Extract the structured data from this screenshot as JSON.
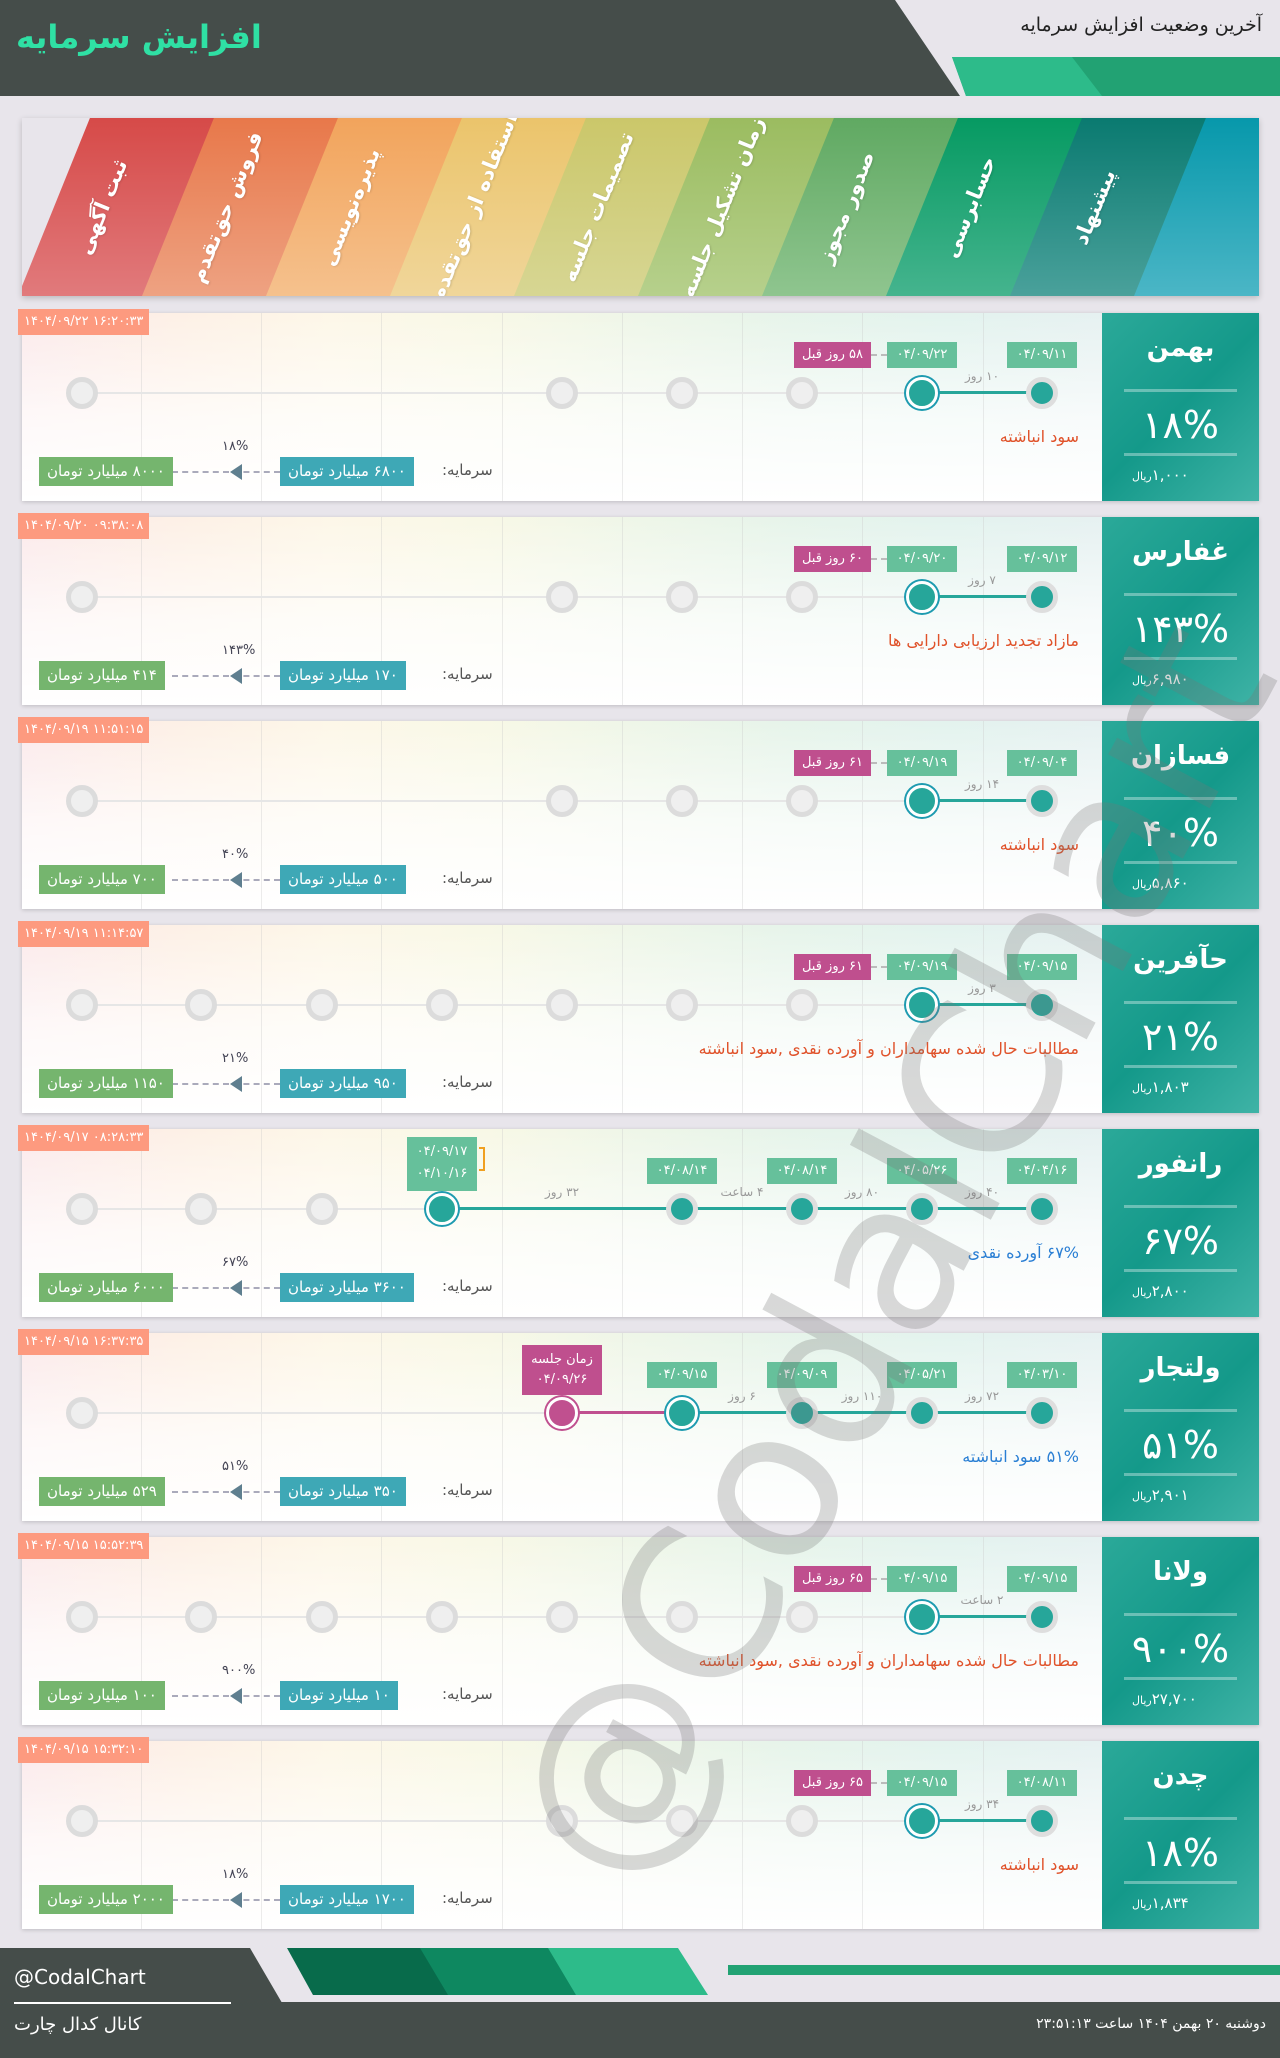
{
  "header": {
    "title": "افزایش سرمایه",
    "subtitle": "آخرین وضعیت افزایش سرمایه"
  },
  "stages": [
    "ثبت آگهی",
    "فروش حق‌تقدم",
    "پذیره‌نویسی",
    "استفاده از حق‌تقدم",
    "تصمیمات جلسه",
    "زمان تشکیل جلسه",
    "صدور مجوز",
    "حسابرسی",
    "پیشنهاد"
  ],
  "colors": {
    "accent": "#26a69a",
    "date": "#66c09b",
    "ago": "#bf4f8e",
    "capital": "#3ea8b6",
    "target": "#75b56e",
    "timestamp": "#fd9a7f",
    "reason_red": "#e0522a",
    "reason_blue": "#2a7fd4"
  },
  "labels": {
    "capital": "سرمایه:",
    "currency_unit": "ریال"
  },
  "watermark": "@CodalChart",
  "cards": [
    {
      "symbol": "بهمن",
      "percent": "۱۸%",
      "price": "۱,۰۰۰",
      "timestamp": "۱۴۰۴/۰۹/۲۲ ۱۶:۲۰:۳۳",
      "reason": "سود انباشته",
      "reason_color": "red",
      "capital": "۶۸۰۰ میلیارد تومان",
      "target": "۸۰۰۰ میلیارد تومان",
      "increase": "۱۸%",
      "stages": [
        "filled",
        "current",
        "gray",
        "gray",
        "gray",
        "none",
        "none",
        "none",
        "gray"
      ],
      "dates": [
        "۰۴/۰۹/۱۱",
        "۰۴/۰۹/۲۲"
      ],
      "ago": "۵۸ روز قبل",
      "gaps": [
        "۱۰ روز"
      ]
    },
    {
      "symbol": "غفارس",
      "percent": "۱۴۳%",
      "price": "۶,۹۸۰",
      "timestamp": "۱۴۰۴/۰۹/۲۰ ۰۹:۳۸:۰۸",
      "reason": "مازاد تجدید ارزیابی دارایی ها",
      "reason_color": "red",
      "capital": "۱۷۰ میلیارد تومان",
      "target": "۴۱۴ میلیارد تومان",
      "increase": "۱۴۳%",
      "stages": [
        "filled",
        "current",
        "gray",
        "gray",
        "gray",
        "none",
        "none",
        "none",
        "gray"
      ],
      "dates": [
        "۰۴/۰۹/۱۲",
        "۰۴/۰۹/۲۰"
      ],
      "ago": "۶۰ روز قبل",
      "gaps": [
        "۷ روز"
      ]
    },
    {
      "symbol": "فسازان",
      "percent": "۴۰%",
      "price": "۵,۸۶۰",
      "timestamp": "۱۴۰۴/۰۹/۱۹ ۱۱:۵۱:۱۵",
      "reason": "سود انباشته",
      "reason_color": "red",
      "capital": "۵۰۰ میلیارد تومان",
      "target": "۷۰۰ میلیارد تومان",
      "increase": "۴۰%",
      "stages": [
        "filled",
        "current",
        "gray",
        "gray",
        "gray",
        "none",
        "none",
        "none",
        "gray"
      ],
      "dates": [
        "۰۴/۰۹/۰۴",
        "۰۴/۰۹/۱۹"
      ],
      "ago": "۶۱ روز قبل",
      "gaps": [
        "۱۴ روز"
      ]
    },
    {
      "symbol": "حآفرین",
      "percent": "۲۱%",
      "price": "۱,۸۰۳",
      "timestamp": "۱۴۰۴/۰۹/۱۹ ۱۱:۱۴:۵۷",
      "reason": "مطالبات حال شده سهامداران و آورده نقدی ,سود انباشته",
      "reason_color": "red",
      "capital": "۹۵۰ میلیارد تومان",
      "target": "۱۱۵۰ میلیارد تومان",
      "increase": "۲۱%",
      "stages": [
        "filled",
        "current",
        "gray",
        "gray",
        "gray",
        "gray",
        "gray",
        "gray",
        "gray"
      ],
      "dates": [
        "۰۴/۰۹/۱۵",
        "۰۴/۰۹/۱۹"
      ],
      "ago": "۶۱ روز قبل",
      "gaps": [
        "۳ روز"
      ]
    },
    {
      "symbol": "رانفور",
      "percent": "۶۷%",
      "price": "۲,۸۰۰",
      "timestamp": "۱۴۰۴/۰۹/۱۷ ۰۸:۲۸:۳۳",
      "reason": "۶۷% آورده نقدی",
      "reason_color": "blue",
      "capital": "۳۶۰۰ میلیارد تومان",
      "target": "۶۰۰۰ میلیارد تومان",
      "increase": "۶۷%",
      "stages": [
        "filled",
        "filled",
        "filled",
        "filled",
        "none",
        "current",
        "gray",
        "gray",
        "gray"
      ],
      "dates": [
        "۰۴/۰۴/۱۶",
        "۰۴/۰۵/۲۶",
        "۰۴/۰۸/۱۴",
        "۰۴/۰۸/۱۴",
        null,
        "۰۴/۰۹/۱۷"
      ],
      "date_extra": "۰۴/۱۰/۱۶",
      "gaps": [
        "۴۰ روز",
        "۸۰ روز",
        "۴ ساعت",
        "۳۲ روز"
      ]
    },
    {
      "symbol": "ولتجار",
      "percent": "۵۱%",
      "price": "۲,۹۰۱",
      "timestamp": "۱۴۰۴/۰۹/۱۵ ۱۶:۳۷:۳۵",
      "reason": "۵۱% سود انباشته",
      "reason_color": "blue",
      "capital": "۳۵۰ میلیارد تومان",
      "target": "۵۲۹ میلیارد تومان",
      "increase": "۵۱%",
      "stages": [
        "filled",
        "filled",
        "filled",
        "current",
        "meeting",
        "none",
        "none",
        "none",
        "gray"
      ],
      "dates": [
        "۰۴/۰۳/۱۰",
        "۰۴/۰۵/۲۱",
        "۰۴/۰۹/۰۹",
        "۰۴/۰۹/۱۵"
      ],
      "meeting_label": "زمان جلسه",
      "meeting_date": "۰۴/۰۹/۲۶",
      "gaps": [
        "۷۲ روز",
        "۱۱۰ روز",
        "۶ روز"
      ]
    },
    {
      "symbol": "ولانا",
      "percent": "۹۰۰%",
      "price": "۲۷,۷۰۰",
      "timestamp": "۱۴۰۴/۰۹/۱۵ ۱۵:۵۲:۳۹",
      "reason": "مطالبات حال شده سهامداران و آورده نقدی ,سود انباشته",
      "reason_color": "red",
      "capital": "۱۰ میلیارد تومان",
      "target": "۱۰۰ میلیارد تومان",
      "increase": "۹۰۰%",
      "stages": [
        "filled",
        "current",
        "gray",
        "gray",
        "gray",
        "gray",
        "gray",
        "gray",
        "gray"
      ],
      "dates": [
        "۰۴/۰۹/۱۵",
        "۰۴/۰۹/۱۵"
      ],
      "ago": "۶۵ روز قبل",
      "gaps": [
        "۲ ساعت"
      ]
    },
    {
      "symbol": "چدن",
      "percent": "۱۸%",
      "price": "۱,۸۳۴",
      "timestamp": "۱۴۰۴/۰۹/۱۵ ۱۵:۳۲:۱۰",
      "reason": "سود انباشته",
      "reason_color": "red",
      "capital": "۱۷۰۰ میلیارد تومان",
      "target": "۲۰۰۰ میلیارد تومان",
      "increase": "۱۸%",
      "stages": [
        "filled",
        "current",
        "gray",
        "gray",
        "gray",
        "none",
        "none",
        "none",
        "gray"
      ],
      "dates": [
        "۰۴/۰۸/۱۱",
        "۰۴/۰۹/۱۵"
      ],
      "ago": "۶۵ روز قبل",
      "gaps": [
        "۳۴ روز"
      ]
    }
  ],
  "footer": {
    "handle": "@CodalChart",
    "channel": "کانال کدال چارت",
    "datetime": "دوشنبه ۲۰ بهمن ۱۴۰۴ ساعت ۲۳:۵۱:۱۳"
  }
}
